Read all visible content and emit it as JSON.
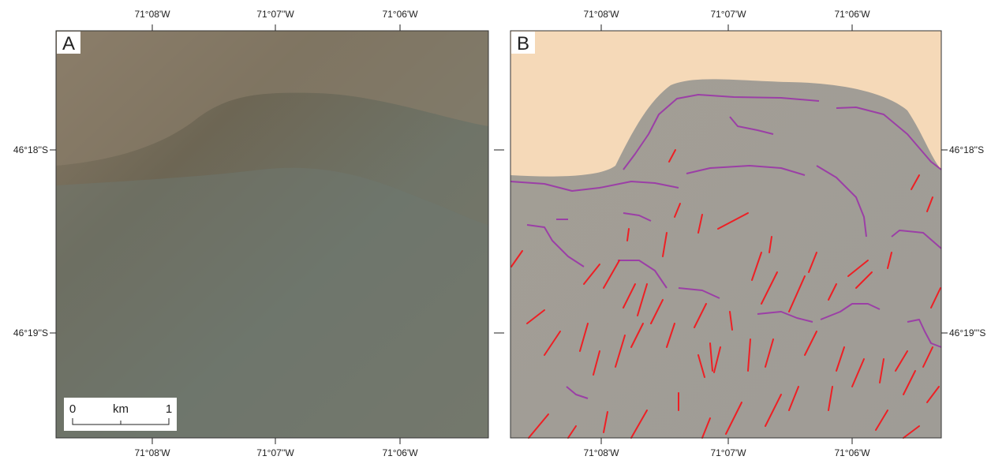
{
  "panels": [
    {
      "label": "A",
      "top_ticks": [
        "71°08'W",
        "71°07''W",
        "71°06'W"
      ],
      "bottom_ticks": [
        "71°08'W",
        "71°07''W",
        "71°06'W"
      ],
      "left_ticks": [
        "46°18''S",
        "46°19''S"
      ],
      "scale_bar": {
        "start": "0",
        "unit": "km",
        "end": "1"
      }
    },
    {
      "label": "B",
      "top_ticks": [
        "71°08'W",
        "71°07'W",
        "71°06'W"
      ],
      "bottom_ticks": [
        "71°08'W",
        "71°07'W",
        "71°06'W"
      ],
      "right_ticks": [
        "46°18''S",
        "46°19'''S"
      ]
    }
  ]
}
